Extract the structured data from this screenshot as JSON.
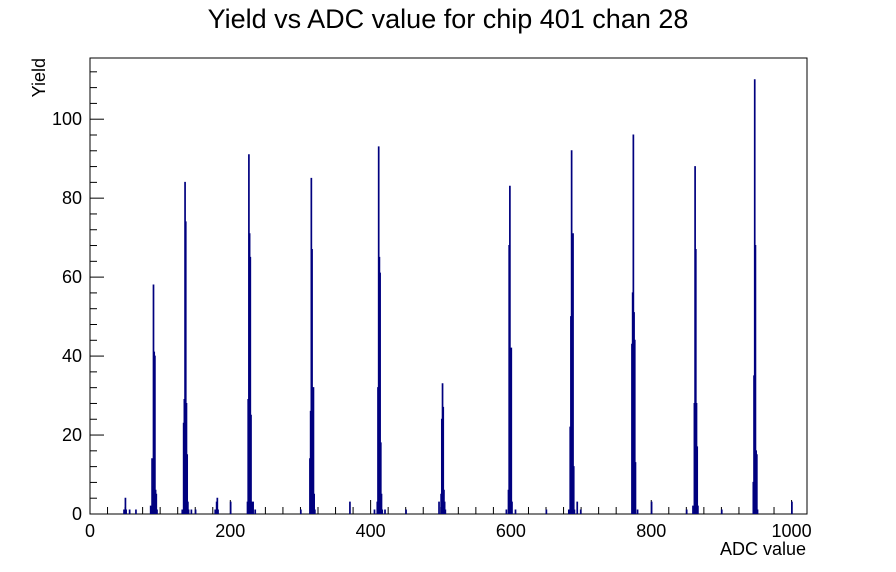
{
  "chart_data": {
    "type": "histogram",
    "title": "Yield vs ADC value for chip 401 chan 28",
    "xlabel": "ADC value",
    "ylabel": "Yield",
    "xlim": [
      0,
      1022
    ],
    "ylim": [
      0,
      115.5
    ],
    "x_ticks": [
      0,
      200,
      400,
      600,
      800,
      1000
    ],
    "y_ticks": [
      0,
      20,
      40,
      60,
      80,
      100
    ],
    "bin_width": 1,
    "grid": false,
    "line_color": "#00007f",
    "series": [
      {
        "values": [
          [
            48,
            1
          ],
          [
            50,
            4
          ],
          [
            51,
            1
          ],
          [
            56,
            1
          ],
          [
            65,
            1
          ],
          [
            86,
            2
          ],
          [
            88,
            14
          ],
          [
            89,
            7
          ],
          [
            90,
            58
          ],
          [
            91,
            41
          ],
          [
            92,
            40
          ],
          [
            93,
            6
          ],
          [
            94,
            5
          ],
          [
            95,
            1
          ],
          [
            131,
            1
          ],
          [
            133,
            23
          ],
          [
            134,
            29
          ],
          [
            135,
            84
          ],
          [
            136,
            74
          ],
          [
            137,
            28
          ],
          [
            138,
            15
          ],
          [
            139,
            3
          ],
          [
            140,
            1
          ],
          [
            144,
            1
          ],
          [
            150,
            1
          ],
          [
            178,
            1
          ],
          [
            180,
            3
          ],
          [
            181,
            4
          ],
          [
            182,
            1
          ],
          [
            200,
            3
          ],
          [
            224,
            3
          ],
          [
            225,
            29
          ],
          [
            226,
            91
          ],
          [
            227,
            71
          ],
          [
            228,
            65
          ],
          [
            229,
            25
          ],
          [
            230,
            3
          ],
          [
            232,
            3
          ],
          [
            235,
            1
          ],
          [
            300,
            1
          ],
          [
            313,
            14
          ],
          [
            314,
            26
          ],
          [
            315,
            85
          ],
          [
            316,
            67
          ],
          [
            317,
            26
          ],
          [
            318,
            32
          ],
          [
            319,
            5
          ],
          [
            320,
            1
          ],
          [
            370,
            3
          ],
          [
            405,
            1
          ],
          [
            409,
            3
          ],
          [
            410,
            32
          ],
          [
            411,
            93
          ],
          [
            412,
            65
          ],
          [
            413,
            61
          ],
          [
            414,
            18
          ],
          [
            415,
            5
          ],
          [
            416,
            1
          ],
          [
            420,
            1
          ],
          [
            450,
            1
          ],
          [
            497,
            3
          ],
          [
            500,
            5
          ],
          [
            501,
            24
          ],
          [
            502,
            33
          ],
          [
            503,
            27
          ],
          [
            504,
            6
          ],
          [
            505,
            3
          ],
          [
            506,
            1
          ],
          [
            593,
            1
          ],
          [
            596,
            6
          ],
          [
            597,
            68
          ],
          [
            598,
            83
          ],
          [
            599,
            37
          ],
          [
            600,
            42
          ],
          [
            601,
            3
          ],
          [
            606,
            1
          ],
          [
            650,
            1
          ],
          [
            682,
            1
          ],
          [
            684,
            22
          ],
          [
            685,
            50
          ],
          [
            686,
            92
          ],
          [
            687,
            42
          ],
          [
            688,
            71
          ],
          [
            689,
            12
          ],
          [
            690,
            1
          ],
          [
            694,
            3
          ],
          [
            699,
            1
          ],
          [
            772,
            43
          ],
          [
            773,
            56
          ],
          [
            774,
            96
          ],
          [
            775,
            51
          ],
          [
            776,
            44
          ],
          [
            777,
            13
          ],
          [
            780,
            1
          ],
          [
            800,
            3
          ],
          [
            850,
            1
          ],
          [
            859,
            2
          ],
          [
            861,
            28
          ],
          [
            862,
            88
          ],
          [
            863,
            67
          ],
          [
            864,
            28
          ],
          [
            865,
            17
          ],
          [
            866,
            2
          ],
          [
            900,
            1
          ],
          [
            945,
            8
          ],
          [
            946,
            35
          ],
          [
            947,
            110
          ],
          [
            948,
            68
          ],
          [
            949,
            16
          ],
          [
            950,
            15
          ],
          [
            951,
            1
          ],
          [
            1000,
            3
          ]
        ]
      }
    ]
  }
}
